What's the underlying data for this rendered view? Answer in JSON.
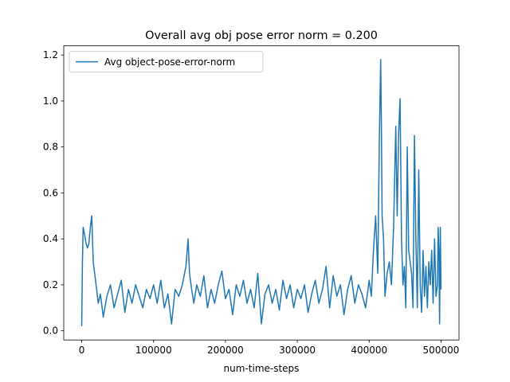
{
  "chart_data": {
    "type": "line",
    "title": "Overall avg obj pose error norm = 0.200",
    "xlabel": "num-time-steps",
    "ylabel": "",
    "xlim": [
      -25000,
      525000
    ],
    "ylim": [
      -0.04,
      1.24
    ],
    "x_ticks": [
      0,
      100000,
      200000,
      300000,
      400000,
      500000
    ],
    "x_tick_labels": [
      "0",
      "100000",
      "200000",
      "300000",
      "400000",
      "500000"
    ],
    "y_ticks": [
      0.0,
      0.2,
      0.4,
      0.6,
      0.8,
      1.0,
      1.2
    ],
    "y_tick_labels": [
      "0.0",
      "0.2",
      "0.4",
      "0.6",
      "0.8",
      "1.0",
      "1.2"
    ],
    "grid": false,
    "legend_position": "upper-left",
    "line_color": "#1f77b4",
    "series": [
      {
        "name": "Avg object-pose-error-norm",
        "x": [
          0,
          1000,
          2000,
          4000,
          6000,
          8000,
          10000,
          12000,
          14000,
          16000,
          18000,
          20000,
          23000,
          26000,
          30000,
          35000,
          40000,
          45000,
          50000,
          55000,
          60000,
          65000,
          70000,
          75000,
          80000,
          85000,
          90000,
          95000,
          100000,
          105000,
          110000,
          115000,
          120000,
          125000,
          130000,
          135000,
          140000,
          145000,
          148000,
          150000,
          153000,
          156000,
          160000,
          165000,
          170000,
          175000,
          180000,
          185000,
          190000,
          195000,
          200000,
          205000,
          210000,
          215000,
          220000,
          225000,
          230000,
          235000,
          240000,
          245000,
          250000,
          255000,
          260000,
          265000,
          270000,
          275000,
          280000,
          285000,
          290000,
          295000,
          300000,
          305000,
          310000,
          315000,
          320000,
          325000,
          330000,
          335000,
          340000,
          345000,
          350000,
          355000,
          360000,
          365000,
          370000,
          375000,
          380000,
          385000,
          390000,
          395000,
          400000,
          403000,
          406000,
          409000,
          412000,
          414000,
          416000,
          417000,
          418000,
          420000,
          422000,
          425000,
          428000,
          431000,
          434000,
          437000,
          439000,
          441000,
          443000,
          445000,
          447000,
          449000,
          451000,
          453000,
          455000,
          457000,
          459000,
          461000,
          463000,
          465000,
          467000,
          469000,
          471000,
          473000,
          475000,
          477000,
          479000,
          481000,
          483000,
          485000,
          487000,
          489000,
          491000,
          493000,
          495000,
          496000,
          497000,
          498000,
          499000,
          500000
        ],
        "values": [
          0.02,
          0.3,
          0.45,
          0.42,
          0.38,
          0.36,
          0.38,
          0.45,
          0.5,
          0.3,
          0.25,
          0.2,
          0.12,
          0.16,
          0.06,
          0.15,
          0.2,
          0.1,
          0.16,
          0.22,
          0.08,
          0.18,
          0.12,
          0.2,
          0.15,
          0.1,
          0.18,
          0.14,
          0.2,
          0.12,
          0.22,
          0.1,
          0.16,
          0.03,
          0.18,
          0.15,
          0.2,
          0.28,
          0.4,
          0.25,
          0.18,
          0.12,
          0.2,
          0.15,
          0.24,
          0.1,
          0.18,
          0.12,
          0.2,
          0.26,
          0.14,
          0.18,
          0.07,
          0.2,
          0.15,
          0.22,
          0.12,
          0.18,
          0.1,
          0.25,
          0.03,
          0.16,
          0.2,
          0.12,
          0.18,
          0.09,
          0.22,
          0.14,
          0.2,
          0.1,
          0.18,
          0.14,
          0.2,
          0.08,
          0.16,
          0.22,
          0.12,
          0.18,
          0.28,
          0.1,
          0.24,
          0.15,
          0.2,
          0.07,
          0.18,
          0.24,
          0.12,
          0.2,
          0.16,
          0.1,
          0.22,
          0.15,
          0.35,
          0.5,
          0.25,
          0.8,
          1.18,
          0.9,
          0.5,
          0.4,
          0.15,
          0.25,
          0.3,
          0.2,
          0.45,
          0.89,
          0.5,
          0.86,
          1.01,
          0.4,
          0.2,
          0.28,
          0.1,
          0.8,
          0.35,
          0.3,
          0.25,
          0.1,
          0.85,
          0.4,
          0.1,
          0.7,
          0.2,
          0.08,
          0.35,
          0.15,
          0.28,
          0.1,
          0.3,
          0.2,
          0.35,
          0.12,
          0.4,
          0.15,
          0.2,
          0.45,
          0.35,
          0.03,
          0.45,
          0.18
        ]
      }
    ]
  }
}
